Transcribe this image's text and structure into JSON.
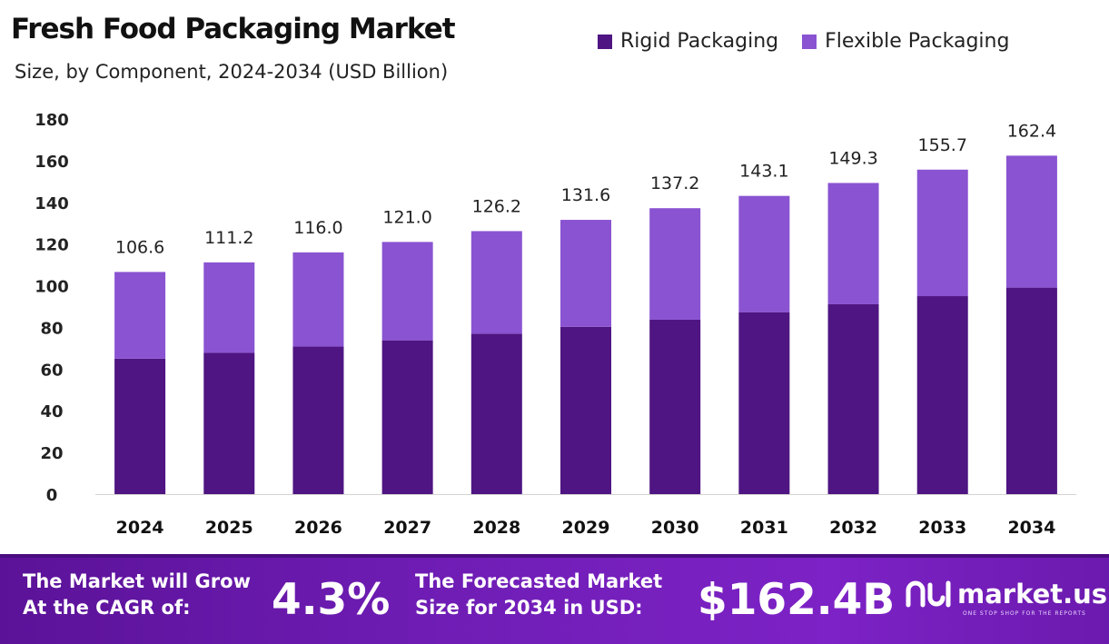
{
  "chart_data": {
    "type": "bar",
    "stacked": true,
    "title": "Fresh Food Packaging Market",
    "subtitle": "Size, by Component, 2024-2034 (USD Billion)",
    "categories": [
      "2024",
      "2025",
      "2026",
      "2027",
      "2028",
      "2029",
      "2030",
      "2031",
      "2032",
      "2033",
      "2034"
    ],
    "series": [
      {
        "name": "Rigid Packaging",
        "color": "#4f1582",
        "values": [
          65.0,
          67.8,
          70.8,
          73.8,
          77.0,
          80.3,
          83.7,
          87.3,
          91.1,
          95.0,
          99.1
        ]
      },
      {
        "name": "Flexible Packaging",
        "color": "#8a53d2",
        "values": [
          41.6,
          43.4,
          45.2,
          47.2,
          49.2,
          51.3,
          53.5,
          55.8,
          58.2,
          60.7,
          63.3
        ]
      }
    ],
    "totals": [
      106.6,
      111.2,
      116.0,
      121.0,
      126.2,
      131.6,
      137.2,
      143.1,
      149.3,
      155.7,
      162.4
    ],
    "total_labels": [
      "106.6",
      "111.2",
      "116.0",
      "121.0",
      "126.2",
      "131.6",
      "137.2",
      "143.1",
      "149.3",
      "155.7",
      "162.4"
    ],
    "ylim": [
      0,
      180
    ],
    "yticks": [
      0,
      20,
      40,
      60,
      80,
      100,
      120,
      140,
      160,
      180
    ],
    "xlabel": "",
    "ylabel": "",
    "grid": false,
    "legend_position": "top-right"
  },
  "banner": {
    "cagr_text_line1": "The Market will Grow",
    "cagr_text_line2": "At the CAGR of:",
    "cagr_value": "4.3%",
    "forecast_text_line1": "The Forecasted Market",
    "forecast_text_line2": "Size for 2034 in USD:",
    "forecast_value": "$162.4B",
    "logo_text": "market.us",
    "logo_tagline": "ONE STOP SHOP FOR THE REPORTS"
  }
}
